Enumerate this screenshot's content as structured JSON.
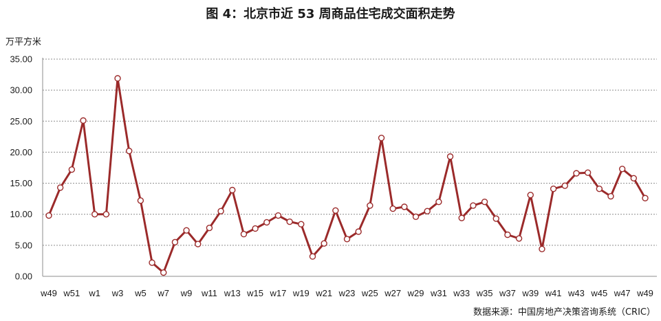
{
  "chart_data": {
    "type": "line",
    "title": "图 4：北京市近 53 周商品住宅成交面积走势",
    "ylabel": "万平方米",
    "ylim": [
      0,
      35
    ],
    "yticks": [
      "0.00",
      "5.00",
      "10.00",
      "15.00",
      "20.00",
      "25.00",
      "30.00",
      "35.00"
    ],
    "grid": "horizontal dashed",
    "x": [
      "w49",
      "w50",
      "w51",
      "w52",
      "w1",
      "w2",
      "w3",
      "w4",
      "w5",
      "w6",
      "w7",
      "w8",
      "w9",
      "w10",
      "w11",
      "w12",
      "w13",
      "w14",
      "w15",
      "w16",
      "w17",
      "w18",
      "w19",
      "w20",
      "w21",
      "w22",
      "w23",
      "w24",
      "w25",
      "w26",
      "w27",
      "w28",
      "w29",
      "w30",
      "w31",
      "w32",
      "w33",
      "w34",
      "w35",
      "w36",
      "w37",
      "w38",
      "w39",
      "w40",
      "w41",
      "w42",
      "w43",
      "w44",
      "w45",
      "w46",
      "w47",
      "w48",
      "w49"
    ],
    "xtick_labels": [
      "w49",
      "w51",
      "w1",
      "w3",
      "w5",
      "w7",
      "w9",
      "w11",
      "w13",
      "w15",
      "w17",
      "w19",
      "w21",
      "w23",
      "w25",
      "w27",
      "w29",
      "w31",
      "w33",
      "w35",
      "w37",
      "w39",
      "w41",
      "w43",
      "w45",
      "w47",
      "w49"
    ],
    "series": [
      {
        "color": "#9b2a2a",
        "values": [
          9.8,
          14.3,
          17.2,
          25.1,
          10.0,
          10.0,
          31.9,
          20.2,
          12.2,
          2.2,
          0.6,
          5.5,
          7.4,
          5.2,
          7.8,
          10.5,
          13.9,
          6.8,
          7.7,
          8.7,
          9.8,
          8.8,
          8.4,
          3.2,
          5.3,
          10.6,
          6.0,
          7.2,
          11.4,
          22.3,
          10.9,
          11.2,
          9.6,
          10.5,
          12.0,
          19.3,
          9.4,
          11.4,
          12.0,
          9.3,
          6.7,
          6.1,
          13.1,
          4.4,
          14.1,
          14.6,
          16.6,
          16.7,
          14.1,
          12.9,
          17.3,
          15.8,
          12.6
        ]
      }
    ],
    "marker": "circle-white-fill"
  },
  "source": "数据来源：中国房地产决策咨询系统（CRIC）"
}
